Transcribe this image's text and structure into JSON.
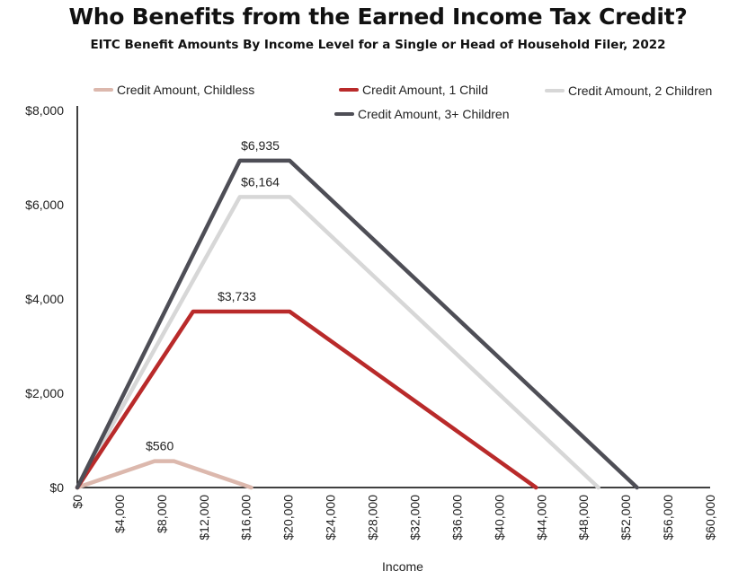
{
  "chart_data": {
    "type": "line",
    "title": "Who Benefits from the Earned Income Tax Credit?",
    "subtitle": "EITC Benefit Amounts By Income Level for a Single or Head of Household Filer, 2022",
    "xlabel": "Income",
    "ylabel": "",
    "xlim": [
      0,
      60000
    ],
    "ylim": [
      0,
      8000
    ],
    "x_ticks": [
      "$0",
      "$4,000",
      "$8,000",
      "$12,000",
      "$16,000",
      "$20,000",
      "$24,000",
      "$28,000",
      "$32,000",
      "$36,000",
      "$40,000",
      "$44,000",
      "$48,000",
      "$52,000",
      "$56,000",
      "$60,000"
    ],
    "y_ticks": [
      "$0",
      "$2,000",
      "$4,000",
      "$6,000",
      "$8,000"
    ],
    "grid": false,
    "legend_position": "top",
    "series": [
      {
        "name": "Credit Amount, Childless",
        "color": "#dcb8ad",
        "x": [
          0,
          7320,
          9160,
          16480
        ],
        "y": [
          0,
          560,
          560,
          0
        ],
        "peak_label": "$560"
      },
      {
        "name": "Credit Amount, 1 Child",
        "color": "#b92a2a",
        "x": [
          0,
          10980,
          20130,
          43490
        ],
        "y": [
          0,
          3733,
          3733,
          0
        ],
        "peak_label": "$3,733"
      },
      {
        "name": "Credit Amount, 2 Children",
        "color": "#d7d7d7",
        "x": [
          0,
          15410,
          20130,
          49400
        ],
        "y": [
          0,
          6164,
          6164,
          0
        ],
        "peak_label": "$6,164"
      },
      {
        "name": "Credit Amount, 3+ Children",
        "color": "#4e4e56",
        "x": [
          0,
          15410,
          20130,
          53060
        ],
        "y": [
          0,
          6935,
          6935,
          0
        ],
        "peak_label": "$6,935"
      }
    ]
  }
}
